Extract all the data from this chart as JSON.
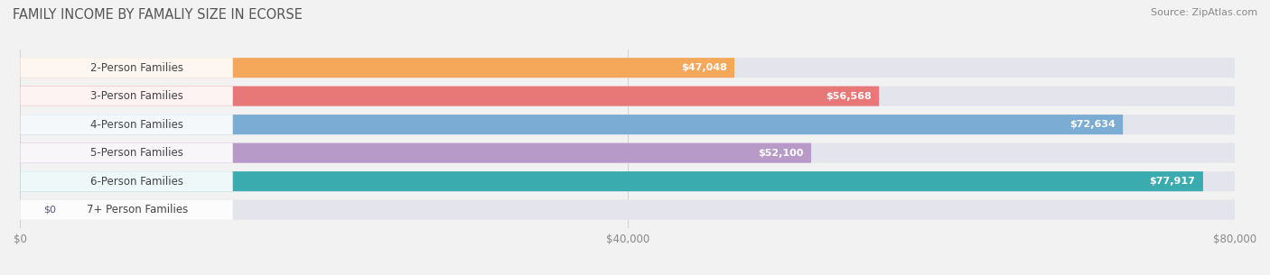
{
  "title": "FAMILY INCOME BY FAMALIY SIZE IN ECORSE",
  "source": "Source: ZipAtlas.com",
  "categories": [
    "2-Person Families",
    "3-Person Families",
    "4-Person Families",
    "5-Person Families",
    "6-Person Families",
    "7+ Person Families"
  ],
  "values": [
    47048,
    56568,
    72634,
    52100,
    77917,
    0
  ],
  "bar_colors": [
    "#F5A85A",
    "#E87878",
    "#7BACD4",
    "#B89AC8",
    "#3AACB0",
    "#C0C8E0"
  ],
  "value_labels": [
    "$47,048",
    "$56,568",
    "$72,634",
    "$52,100",
    "$77,917",
    "$0"
  ],
  "xlim": [
    0,
    80000
  ],
  "xticks": [
    0,
    40000,
    80000
  ],
  "xticklabels": [
    "$0",
    "$40,000",
    "$80,000"
  ],
  "bar_height": 0.7,
  "background_color": "#f2f2f2",
  "bar_bg_color": "#e4e4ec",
  "title_fontsize": 10.5,
  "source_fontsize": 8,
  "label_fontsize": 8.5,
  "value_fontsize": 8
}
